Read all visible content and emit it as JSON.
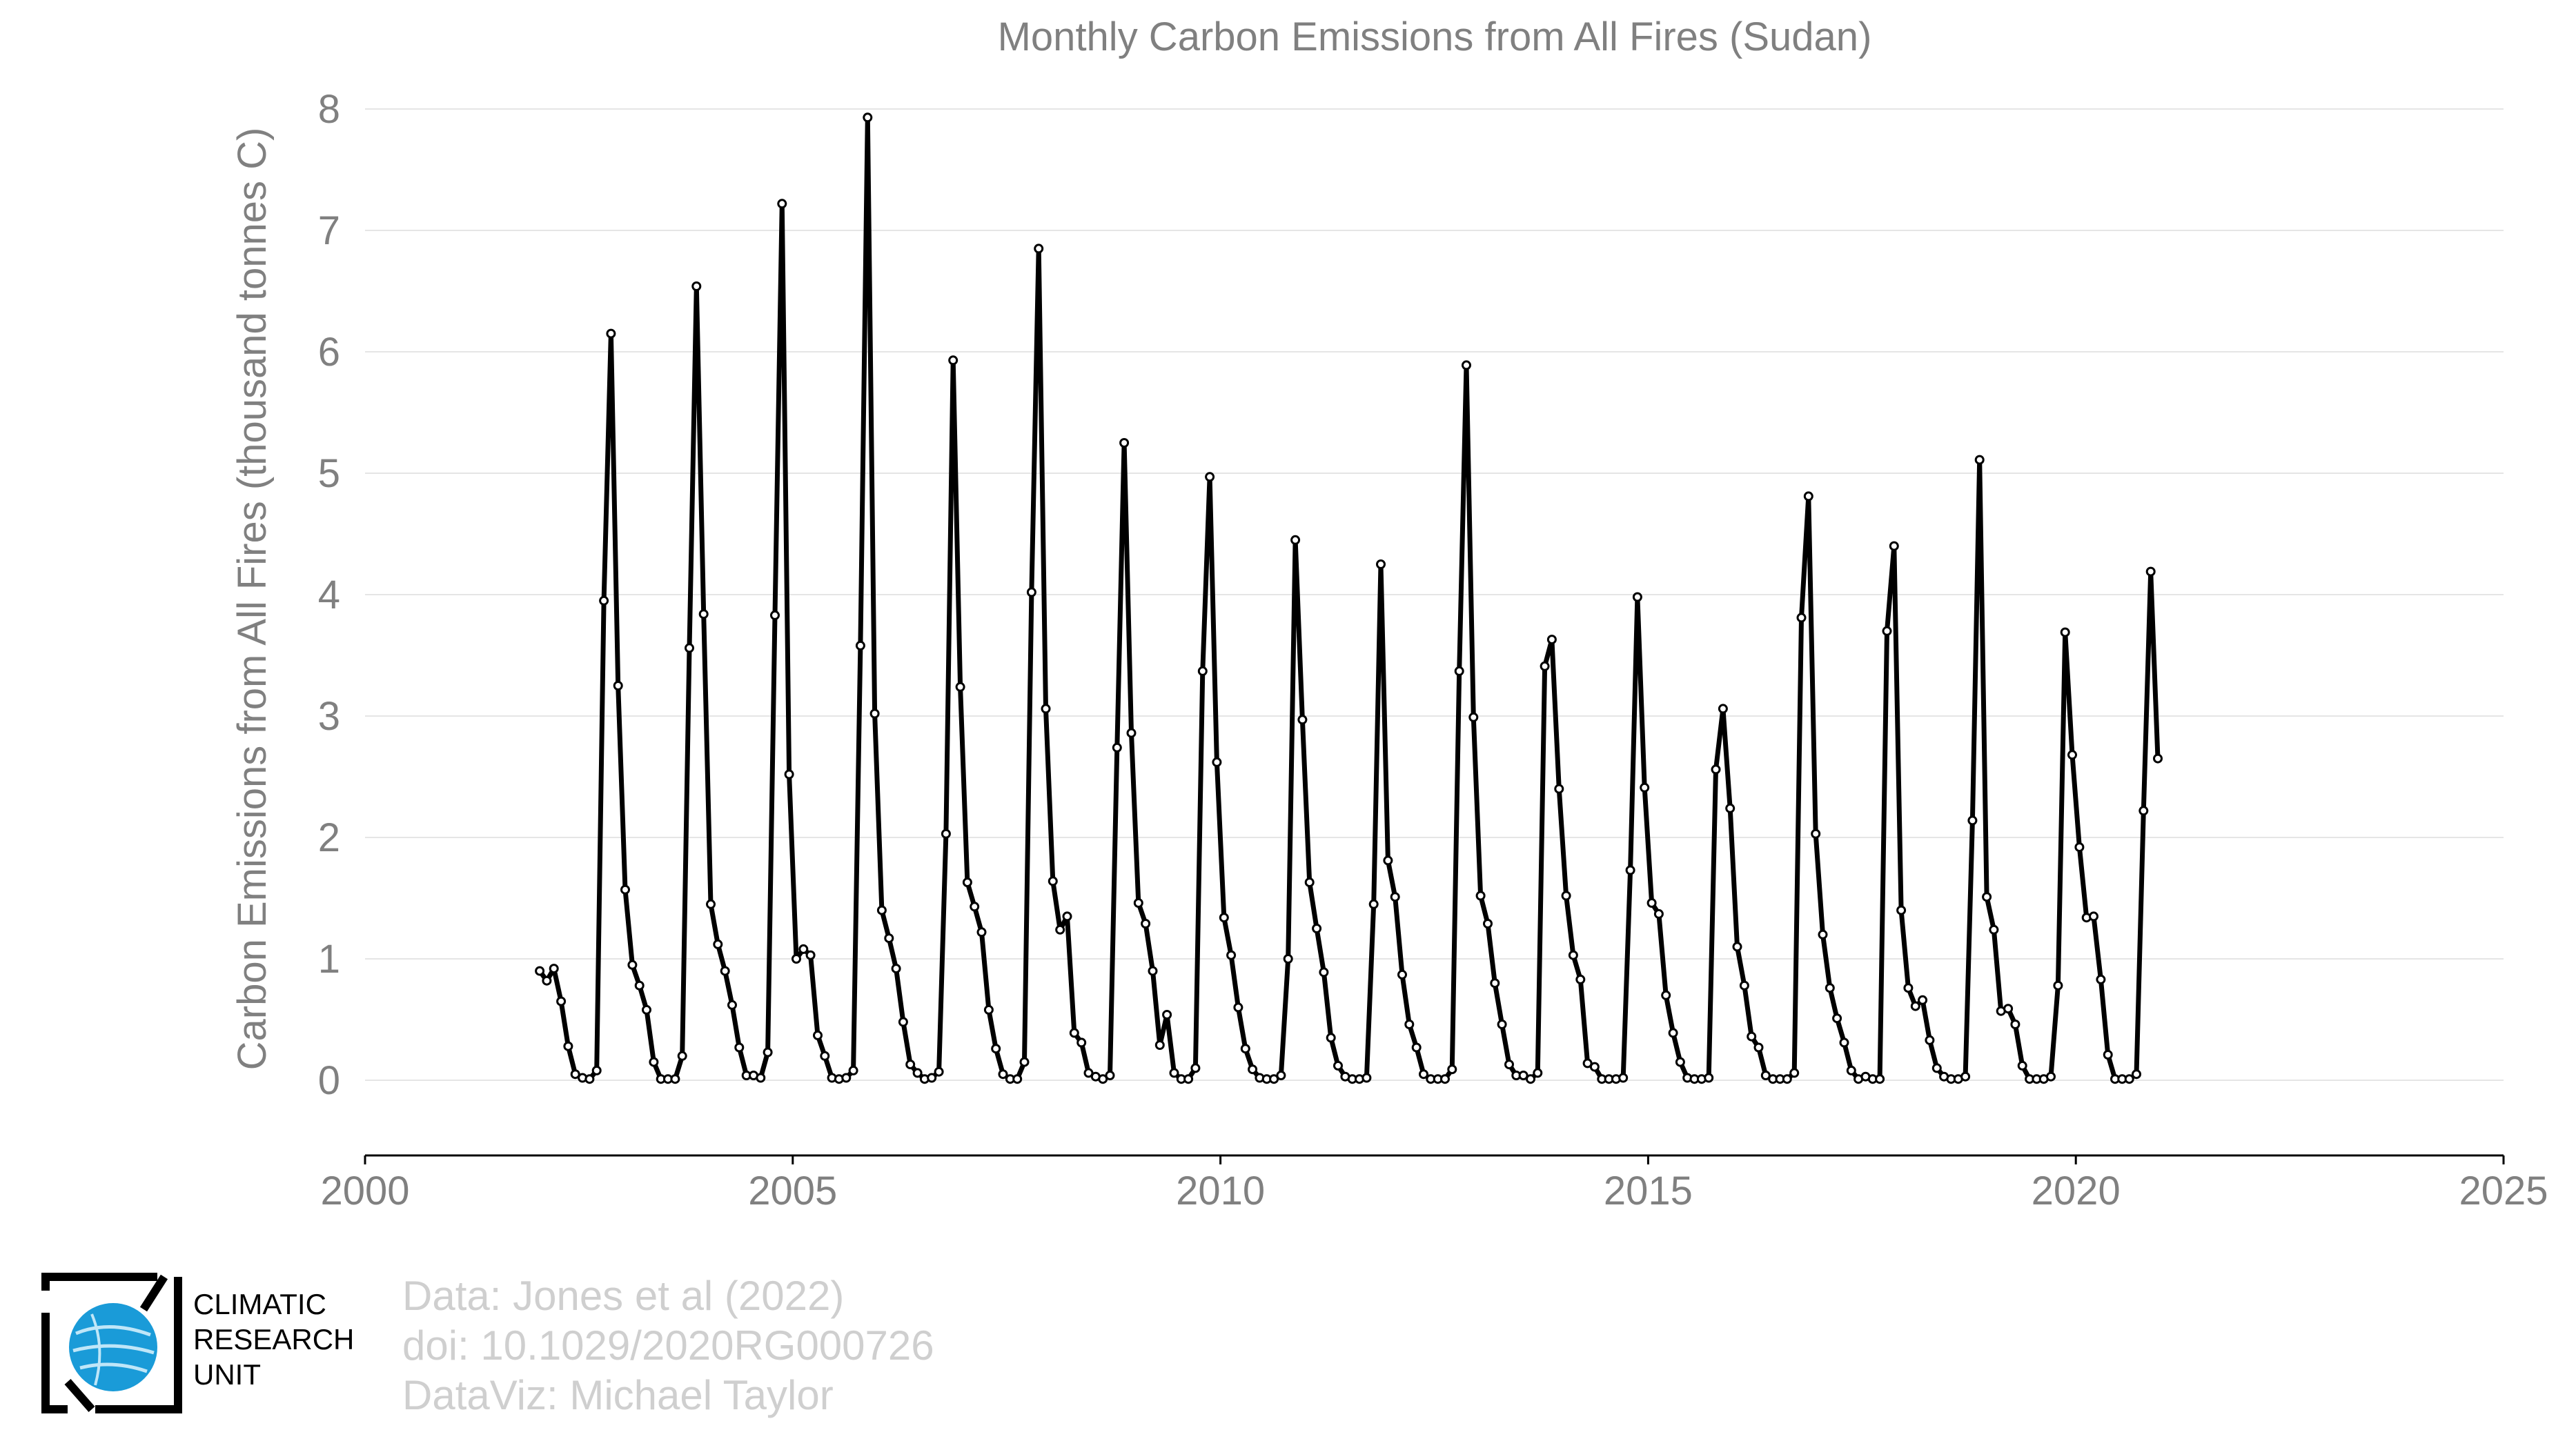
{
  "chart_data": {
    "type": "line",
    "title": "Monthly Carbon Emissions from All Fires (Sudan)",
    "xlabel": "",
    "ylabel": "Carbon Emissions from All Fires (thousand tonnes C)",
    "xlim": [
      2000,
      2025
    ],
    "ylim": [
      -0.63,
      8.05
    ],
    "x_ticks": [
      "2000",
      "2005",
      "2010",
      "2015",
      "2020",
      "2025"
    ],
    "y_ticks": [
      "0",
      "1",
      "2",
      "3",
      "4",
      "5",
      "6",
      "7",
      "8"
    ],
    "grid": "horizontal",
    "x_start": "2002-01",
    "x_step": "1 month",
    "series": [
      {
        "values": [
          0.9,
          0.82,
          0.92,
          0.65,
          0.28,
          0.05,
          0.02,
          0.01,
          0.08,
          3.95,
          6.15,
          3.25,
          1.57,
          0.95,
          0.78,
          0.58,
          0.15,
          0.01,
          0.01,
          0.01,
          0.2,
          3.56,
          6.54,
          3.84,
          1.45,
          1.12,
          0.9,
          0.62,
          0.27,
          0.04,
          0.04,
          0.02,
          0.23,
          3.83,
          7.22,
          2.52,
          1.0,
          1.08,
          1.03,
          0.37,
          0.2,
          0.02,
          0.01,
          0.02,
          0.08,
          3.58,
          7.93,
          3.02,
          1.4,
          1.17,
          0.92,
          0.48,
          0.13,
          0.06,
          0.01,
          0.02,
          0.07,
          2.03,
          5.93,
          3.24,
          1.63,
          1.43,
          1.22,
          0.58,
          0.26,
          0.05,
          0.01,
          0.01,
          0.15,
          4.02,
          6.85,
          3.06,
          1.64,
          1.24,
          1.35,
          0.39,
          0.31,
          0.06,
          0.03,
          0.01,
          0.04,
          2.74,
          5.25,
          2.86,
          1.46,
          1.29,
          0.9,
          0.29,
          0.54,
          0.06,
          0.01,
          0.01,
          0.1,
          3.37,
          4.97,
          2.62,
          1.34,
          1.03,
          0.6,
          0.26,
          0.09,
          0.02,
          0.01,
          0.01,
          0.04,
          1.0,
          4.45,
          2.97,
          1.63,
          1.25,
          0.89,
          0.35,
          0.12,
          0.03,
          0.01,
          0.01,
          0.02,
          1.45,
          4.25,
          1.81,
          1.51,
          0.87,
          0.46,
          0.27,
          0.05,
          0.01,
          0.01,
          0.01,
          0.09,
          3.37,
          5.89,
          2.99,
          1.52,
          1.29,
          0.8,
          0.46,
          0.13,
          0.04,
          0.04,
          0.01,
          0.06,
          3.41,
          3.63,
          2.4,
          1.52,
          1.03,
          0.83,
          0.14,
          0.11,
          0.01,
          0.01,
          0.01,
          0.02,
          1.73,
          3.98,
          2.41,
          1.46,
          1.37,
          0.7,
          0.39,
          0.15,
          0.02,
          0.01,
          0.01,
          0.02,
          2.56,
          3.06,
          2.24,
          1.1,
          0.78,
          0.36,
          0.27,
          0.04,
          0.01,
          0.01,
          0.01,
          0.06,
          3.81,
          4.81,
          2.03,
          1.2,
          0.76,
          0.51,
          0.31,
          0.08,
          0.01,
          0.03,
          0.01,
          0.01,
          3.7,
          4.4,
          1.4,
          0.76,
          0.61,
          0.66,
          0.33,
          0.1,
          0.03,
          0.01,
          0.01,
          0.03,
          2.14,
          5.11,
          1.51,
          1.24,
          0.57,
          0.59,
          0.46,
          0.12,
          0.01,
          0.01,
          0.01,
          0.03,
          0.78,
          3.69,
          2.68,
          1.92,
          1.34,
          1.35,
          0.83,
          0.21,
          0.01,
          0.01,
          0.01,
          0.05,
          2.22,
          4.19,
          2.65
        ]
      }
    ]
  },
  "credits": {
    "line1": "Data: Jones et al (2022)",
    "line2": "doi: 10.1029/2020RG000726",
    "line3": "DataViz: Michael Taylor"
  },
  "logo": {
    "line1": "CLIMATIC",
    "line2": "RESEARCH",
    "line3": "UNIT"
  },
  "colors": {
    "line": "#000000",
    "marker_fill": "#ffffff",
    "grid": "#e5e5e5",
    "axis_text": "#808080",
    "credits_text": "#cfcfcf",
    "logo_globe": "#1a9bd8"
  }
}
